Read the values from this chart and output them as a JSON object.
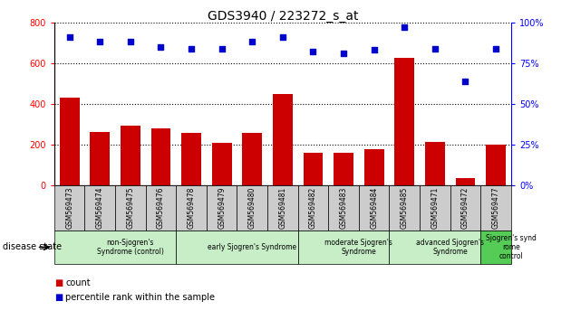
{
  "title": "GDS3940 / 223272_s_at",
  "samples": [
    "GSM569473",
    "GSM569474",
    "GSM569475",
    "GSM569476",
    "GSM569478",
    "GSM569479",
    "GSM569480",
    "GSM569481",
    "GSM569482",
    "GSM569483",
    "GSM569484",
    "GSM569485",
    "GSM569471",
    "GSM569472",
    "GSM569477"
  ],
  "counts": [
    430,
    265,
    295,
    280,
    258,
    210,
    258,
    448,
    160,
    162,
    178,
    625,
    215,
    38,
    200
  ],
  "percentiles": [
    91,
    88,
    88,
    85,
    84,
    84,
    88,
    91,
    82,
    81,
    83,
    97,
    84,
    64,
    84
  ],
  "bar_color": "#cc0000",
  "dot_color": "#0000cc",
  "ylim_left": [
    0,
    800
  ],
  "ylim_right": [
    0,
    100
  ],
  "yticks_left": [
    0,
    200,
    400,
    600,
    800
  ],
  "yticks_right": [
    0,
    25,
    50,
    75,
    100
  ],
  "group_defs": [
    {
      "label": "non-Sjogren's\nSyndrome (control)",
      "start": 0,
      "end": 4,
      "color": "#c8eec8"
    },
    {
      "label": "early Sjogren's Syndrome",
      "start": 4,
      "end": 8,
      "color": "#c8eec8"
    },
    {
      "label": "moderate Sjogren's\nSyndrome",
      "start": 8,
      "end": 11,
      "color": "#c8eec8"
    },
    {
      "label": "advanced Sjogren's Syndrome",
      "start": 11,
      "end": 14,
      "color": "#c8eec8"
    },
    {
      "label": "Sjogren's synd\nrome\ncontrol",
      "start": 14,
      "end": 15,
      "color": "#55dd55"
    }
  ],
  "disease_state_label": "disease state",
  "legend_count_label": "count",
  "legend_pct_label": "percentile rank within the sample",
  "sample_box_color": "#cccccc",
  "group0_color": "#c8eec8",
  "group_green_color": "#90ee90"
}
